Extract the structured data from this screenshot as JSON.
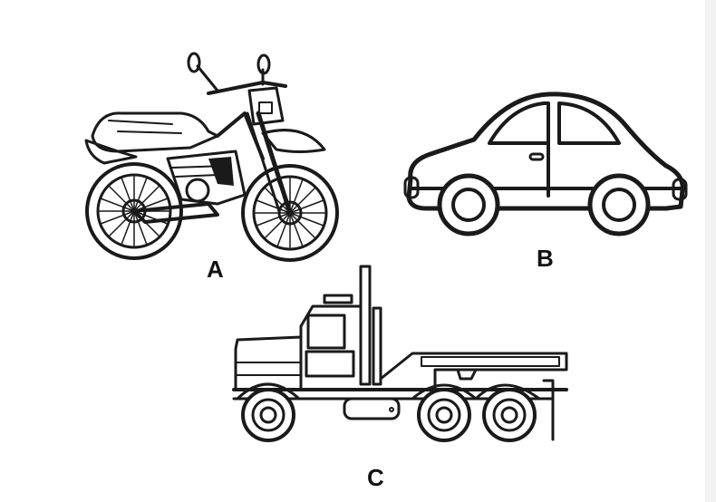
{
  "labels": {
    "a": "A",
    "b": "B",
    "c": "C"
  },
  "figures": {
    "a": {
      "icon": "motorcycle-icon"
    },
    "b": {
      "icon": "car-icon"
    },
    "c": {
      "icon": "truck-icon"
    }
  },
  "colors": {
    "ink": "#1a1a1a",
    "background": "#ffffff"
  }
}
